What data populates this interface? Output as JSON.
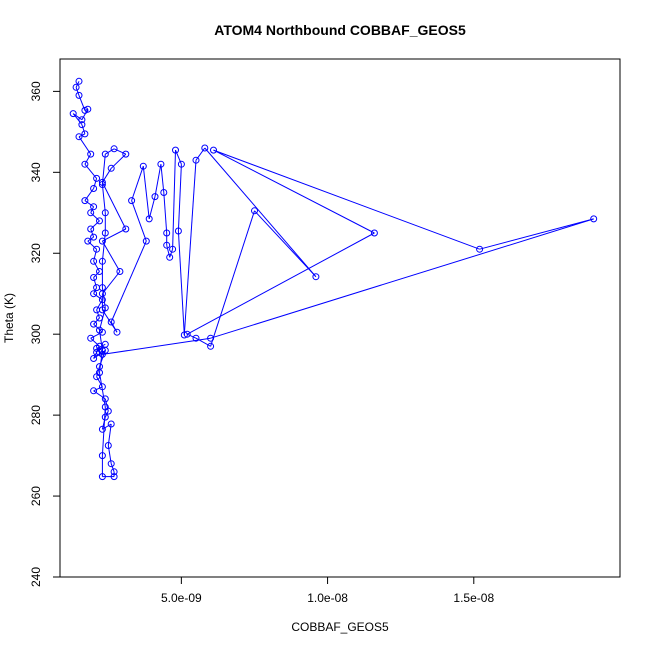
{
  "chart_data": {
    "type": "scatter",
    "mode": "lines+points",
    "title": "ATOM4 Northbound COBBAF_GEOS5",
    "xlabel": "COBBAF_GEOS5",
    "ylabel": "Theta (K)",
    "xlim": [
      8.5e-10,
      2e-08
    ],
    "ylim": [
      240,
      368
    ],
    "xticks": [
      5e-09,
      1e-08,
      1.5e-08
    ],
    "xtick_labels": [
      "5.0e-09",
      "1.0e-08",
      "1.5e-08"
    ],
    "yticks": [
      240,
      260,
      280,
      300,
      320,
      340,
      360
    ],
    "ytick_labels": [
      "240",
      "260",
      "280",
      "300",
      "320",
      "340",
      "360"
    ],
    "grid": false,
    "colors": {
      "series": "#0000ff",
      "axis": "#000000"
    },
    "series": [
      {
        "points": [
          [
            1.5e-09,
            362.5
          ],
          [
            1.4e-09,
            361.0
          ],
          [
            1.5e-09,
            359.0
          ],
          [
            1.7e-09,
            355.3
          ],
          [
            1.8e-09,
            355.6
          ],
          [
            1.6e-09,
            353.0
          ],
          [
            1.3e-09,
            354.5
          ],
          [
            1.6e-09,
            351.8
          ],
          [
            1.7e-09,
            349.5
          ],
          [
            1.5e-09,
            348.8
          ],
          [
            1.9e-09,
            344.5
          ],
          [
            1.7e-09,
            342.0
          ],
          [
            2.1e-09,
            338.5
          ],
          [
            2e-09,
            336.0
          ],
          [
            1.7e-09,
            333.0
          ],
          [
            2e-09,
            331.5
          ],
          [
            1.9e-09,
            330.0
          ],
          [
            2.2e-09,
            328.0
          ],
          [
            1.9e-09,
            326.0
          ],
          [
            2e-09,
            324.0
          ],
          [
            1.8e-09,
            323.0
          ],
          [
            2.1e-09,
            321.0
          ],
          [
            2e-09,
            318.0
          ],
          [
            2.2e-09,
            315.5
          ],
          [
            2e-09,
            314.0
          ],
          [
            2.1e-09,
            311.5
          ],
          [
            2e-09,
            310.0
          ],
          [
            2.3e-09,
            308.5
          ],
          [
            2.1e-09,
            306.0
          ],
          [
            2.2e-09,
            304.0
          ],
          [
            2e-09,
            302.5
          ],
          [
            2.3e-09,
            300.5
          ],
          [
            1.9e-09,
            299.0
          ],
          [
            2.2e-09,
            297.0
          ],
          [
            2.1e-09,
            295.5
          ],
          [
            2e-09,
            294.0
          ],
          [
            2.4e-09,
            296.0
          ],
          [
            2.2e-09,
            292.0
          ],
          [
            2.1e-09,
            289.5
          ],
          [
            2.3e-09,
            287.0
          ],
          [
            2e-09,
            286.0
          ],
          [
            2.4e-09,
            284.0
          ],
          [
            2.5e-09,
            281.0
          ],
          [
            2.4e-09,
            279.5
          ],
          [
            2.3e-09,
            276.5
          ],
          [
            2.6e-09,
            277.8
          ],
          [
            2.5e-09,
            272.5
          ],
          [
            2.6e-09,
            268.0
          ],
          [
            2.7e-09,
            266.0
          ],
          [
            2.7e-09,
            264.8
          ],
          [
            2.3e-09,
            264.8
          ],
          [
            2.3e-09,
            270.0
          ],
          [
            2.4e-09,
            282.0
          ],
          [
            2.2e-09,
            290.5
          ],
          [
            2.3e-09,
            296.0
          ],
          [
            2.2e-09,
            301.0
          ],
          [
            2.4e-09,
            306.5
          ],
          [
            2.3e-09,
            311.5
          ],
          [
            2.3e-09,
            318.0
          ],
          [
            2.4e-09,
            325.0
          ],
          [
            2.4e-09,
            330.0
          ],
          [
            2.3e-09,
            337.0
          ],
          [
            2.4e-09,
            344.5
          ],
          [
            2.7e-09,
            345.8
          ],
          [
            3.1e-09,
            344.5
          ],
          [
            2.6e-09,
            341.0
          ],
          [
            2.3e-09,
            337.5
          ],
          [
            3.1e-09,
            326.0
          ],
          [
            2.3e-09,
            323.0
          ],
          [
            2.9e-09,
            315.5
          ],
          [
            2.3e-09,
            310.0
          ],
          [
            2.3e-09,
            306.0
          ],
          [
            2.8e-09,
            300.5
          ],
          [
            2.6e-09,
            303.0
          ],
          [
            3.8e-09,
            323.0
          ],
          [
            3.3e-09,
            333.0
          ],
          [
            3.7e-09,
            341.5
          ],
          [
            3.9e-09,
            328.5
          ],
          [
            4.1e-09,
            334.0
          ],
          [
            4.3e-09,
            342.0
          ],
          [
            4.4e-09,
            335.0
          ],
          [
            4.5e-09,
            325.0
          ],
          [
            4.5e-09,
            322.0
          ],
          [
            4.6e-09,
            319.0
          ],
          [
            4.7e-09,
            321.0
          ],
          [
            4.8e-09,
            345.5
          ],
          [
            5e-09,
            342.0
          ],
          [
            4.9e-09,
            325.5
          ],
          [
            5.1e-09,
            299.8
          ],
          [
            5.5e-09,
            343.0
          ],
          [
            5.8e-09,
            346.0
          ],
          [
            9.6e-09,
            314.2
          ],
          [
            7.5e-09,
            330.5
          ],
          [
            6e-09,
            297.0
          ],
          [
            5.5e-09,
            299.0
          ],
          [
            5.2e-09,
            300.0
          ],
          [
            1.16e-08,
            325.0
          ],
          [
            6.1e-09,
            345.5
          ],
          [
            1.52e-08,
            321.0
          ],
          [
            1.91e-08,
            328.5
          ],
          [
            6e-09,
            299.0
          ],
          [
            2.3e-09,
            295.0
          ],
          [
            2.2e-09,
            295.5
          ],
          [
            2.1e-09,
            296.5
          ],
          [
            2.4e-09,
            297.5
          ]
        ]
      }
    ]
  }
}
